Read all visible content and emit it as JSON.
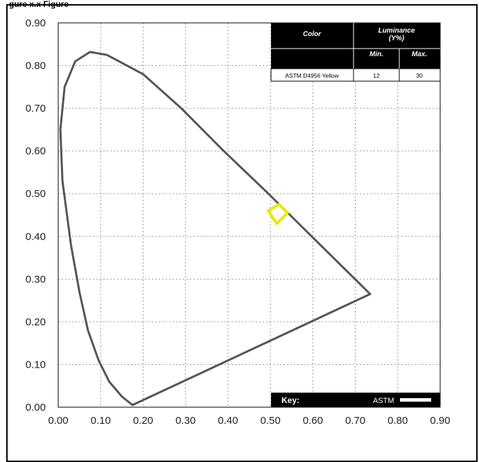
{
  "figure": {
    "caption_partial": "gure x.x Figure"
  },
  "chart_data": {
    "type": "line",
    "title": "",
    "xlabel": "",
    "ylabel": "",
    "xlim": [
      0.0,
      0.9
    ],
    "ylim": [
      0.0,
      0.9
    ],
    "grid": true,
    "x_ticks": [
      "0.00",
      "0.10",
      "0.20",
      "0.30",
      "0.40",
      "0.50",
      "0.60",
      "0.70",
      "0.80",
      "0.90"
    ],
    "y_ticks": [
      "0.00",
      "0.10",
      "0.20",
      "0.30",
      "0.40",
      "0.50",
      "0.60",
      "0.70",
      "0.80",
      "0.90"
    ],
    "series": [
      {
        "role": "spectral-locus-boundary",
        "color": "#555555",
        "points": [
          [
            0.175,
            0.005
          ],
          [
            0.15,
            0.025
          ],
          [
            0.12,
            0.06
          ],
          [
            0.095,
            0.11
          ],
          [
            0.07,
            0.18
          ],
          [
            0.05,
            0.27
          ],
          [
            0.03,
            0.38
          ],
          [
            0.01,
            0.53
          ],
          [
            0.005,
            0.65
          ],
          [
            0.015,
            0.75
          ],
          [
            0.04,
            0.81
          ],
          [
            0.075,
            0.832
          ],
          [
            0.115,
            0.825
          ],
          [
            0.2,
            0.78
          ],
          [
            0.29,
            0.7
          ],
          [
            0.39,
            0.6
          ],
          [
            0.49,
            0.505
          ],
          [
            0.735,
            0.265
          ],
          [
            0.175,
            0.005
          ]
        ]
      },
      {
        "role": "color-region",
        "name": "ASTM D4956 Yellow",
        "color": "#e8e800",
        "points": [
          [
            0.495,
            0.46
          ],
          [
            0.52,
            0.475
          ],
          [
            0.54,
            0.455
          ],
          [
            0.515,
            0.43
          ],
          [
            0.495,
            0.46
          ]
        ]
      }
    ]
  },
  "table": {
    "headers": {
      "color": "Color",
      "luminance": "Luminance\n(Y%)",
      "min": "Min.",
      "max": "Max."
    },
    "rows": [
      {
        "color": "ASTM D4956 Yellow",
        "min": "12",
        "max": "30"
      }
    ]
  },
  "key": {
    "label": "Key:",
    "entry": "ASTM",
    "swatch_color": "#ffffff"
  }
}
